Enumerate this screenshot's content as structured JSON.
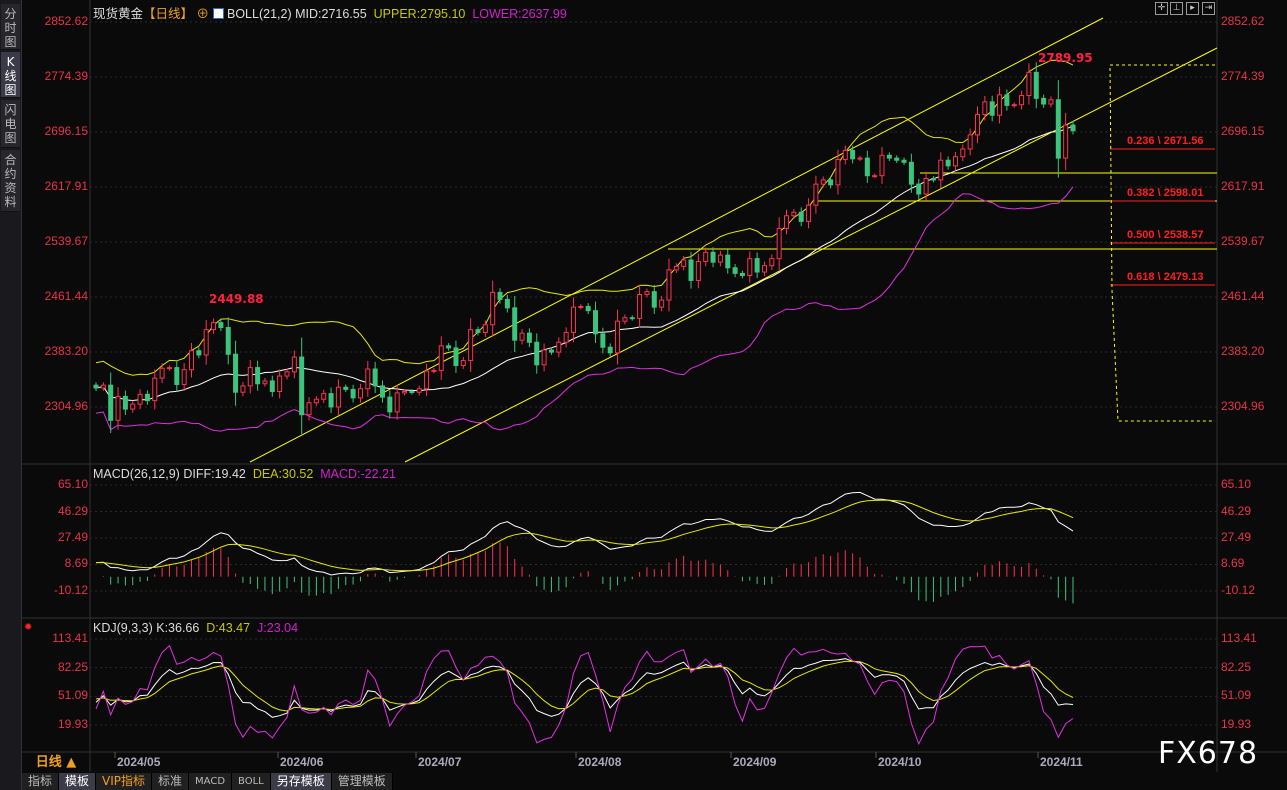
{
  "sidebar": {
    "items": [
      {
        "label": "分时图"
      },
      {
        "label": "K线图",
        "active": true
      },
      {
        "label": "闪电图"
      },
      {
        "label": "合约资料"
      }
    ]
  },
  "main": {
    "symbol": "现货黄金",
    "period": "【日线】",
    "indicator_icon": "chart-icon",
    "boll": {
      "label": "BOLL(21,2)",
      "mid": "MID:2716.55",
      "upper": "UPPER:2795.10",
      "lower": "LOWER:2637.99"
    },
    "y_ticks": [
      "2852.62",
      "2774.39",
      "2696.15",
      "2617.91",
      "2539.67",
      "2461.44",
      "2383.20",
      "2304.96"
    ],
    "high_label": "2789.95",
    "low_high_label": "2449.88",
    "fib": [
      {
        "label": "0.236 \\ 2671.56"
      },
      {
        "label": "0.382 \\ 2598.01"
      },
      {
        "label": "0.500 \\ 2538.57"
      },
      {
        "label": "0.618 \\ 2479.13"
      }
    ]
  },
  "macd": {
    "label": "MACD(26,12,9)",
    "diff": "DIFF:19.42",
    "dea": "DEA:30.52",
    "macd": "MACD:-22.21",
    "y_ticks": [
      "65.10",
      "46.29",
      "27.49",
      "8.69",
      "-10.12"
    ]
  },
  "kdj": {
    "label": "KDJ(9,3,3)",
    "k": "K:36.66",
    "d": "D:43.47",
    "j": "J:23.04",
    "y_ticks": [
      "113.41",
      "82.25",
      "51.09",
      "19.93"
    ]
  },
  "x_axis": {
    "period_button": "日线 ▲",
    "ticks": [
      "2024/05",
      "2024/06",
      "2024/07",
      "2024/08",
      "2024/09",
      "2024/10",
      "2024/11"
    ]
  },
  "toolbar": {
    "tabs": [
      "指标",
      "模板",
      "VIP指标",
      "标准",
      "MACD",
      "BOLL",
      "另存模板",
      "管理模板"
    ]
  },
  "watermark": "FX678",
  "colors": {
    "up": "#ff3050",
    "down": "#3cc47c",
    "mid": "#ffffff",
    "upper": "#e8e800",
    "lower": "#e030e0",
    "axis": "#e8334a",
    "fib": "#ff2020"
  },
  "chart_data": {
    "type": "candlestick",
    "title": "现货黄金【日线】",
    "closes": [
      2332,
      2336,
      2286,
      2320,
      2302,
      2309,
      2323,
      2314,
      2346,
      2360,
      2361,
      2337,
      2358,
      2385,
      2379,
      2415,
      2425,
      2418,
      2380,
      2326,
      2335,
      2361,
      2338,
      2342,
      2327,
      2349,
      2355,
      2376,
      2294,
      2311,
      2316,
      2324,
      2305,
      2333,
      2330,
      2318,
      2331,
      2359,
      2335,
      2319,
      2298,
      2325,
      2327,
      2326,
      2331,
      2356,
      2357,
      2392,
      2389,
      2364,
      2371,
      2415,
      2411,
      2422,
      2468,
      2458,
      2446,
      2400,
      2410,
      2397,
      2365,
      2386,
      2383,
      2397,
      2411,
      2447,
      2448,
      2442,
      2409,
      2390,
      2382,
      2427,
      2432,
      2431,
      2465,
      2469,
      2447,
      2457,
      2500,
      2505,
      2514,
      2485,
      2512,
      2525,
      2511,
      2521,
      2503,
      2495,
      2492,
      2516,
      2497,
      2506,
      2516,
      2559,
      2577,
      2582,
      2569,
      2592,
      2622,
      2628,
      2621,
      2657,
      2670,
      2658,
      2659,
      2634,
      2634,
      2663,
      2659,
      2656,
      2653,
      2622,
      2608,
      2630,
      2628,
      2656,
      2648,
      2661,
      2672,
      2692,
      2721,
      2739,
      2720,
      2749,
      2734,
      2735,
      2748,
      2781,
      2744,
      2736,
      2742,
      2659,
      2706,
      2698
    ],
    "ylim": [
      2304.96,
      2852.62
    ],
    "x_ticks": [
      "2024/05",
      "2024/06",
      "2024/07",
      "2024/08",
      "2024/09",
      "2024/10",
      "2024/11"
    ]
  }
}
